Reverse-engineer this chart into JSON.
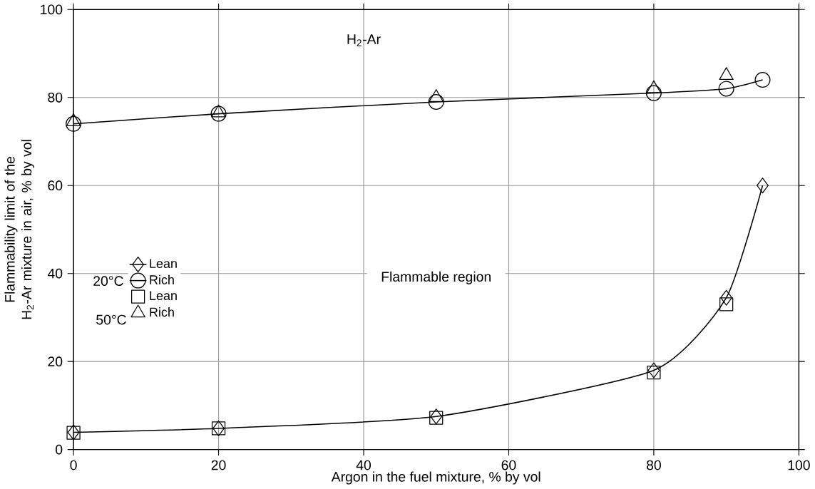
{
  "chart_data": {
    "type": "line",
    "xlabel": "Argon in the fuel mixture, % by vol",
    "ylabel": "Flammability limit of the H$_{2}$-Ar mixture in air, % by vol",
    "xlim": [
      0,
      100
    ],
    "ylim": [
      0,
      100
    ],
    "xticks": [
      0,
      20,
      40,
      60,
      80,
      100
    ],
    "yticks": [
      0,
      20,
      40,
      60,
      80,
      100
    ],
    "grid": true,
    "legend": "left",
    "annotations": [
      "H$_{2}$-Ar",
      "Flammable region",
      "20°C",
      "50°C"
    ],
    "series": [
      {
        "name": "Lean",
        "type": "line",
        "marker": "diamond",
        "color": "#000000",
        "x": [
          0,
          20,
          50,
          80,
          90,
          95
        ],
        "values": [
          3.9,
          4.8,
          7.5,
          18,
          34.5,
          60
        ]
      },
      {
        "name": "Rich",
        "type": "line",
        "marker": "circle",
        "color": "#000000",
        "x": [
          0,
          20,
          50,
          80,
          90,
          95
        ],
        "values": [
          74,
          76.3,
          79,
          81,
          82,
          84
        ]
      },
      {
        "name": "Lean",
        "type": "scatter",
        "marker": "square",
        "color": "#000000",
        "x": [
          0,
          20,
          50,
          80,
          90
        ],
        "values": [
          3.8,
          4.8,
          7.2,
          17.5,
          33
        ]
      },
      {
        "name": "Rich",
        "type": "scatter",
        "marker": "triangle",
        "color": "#000000",
        "x": [
          0,
          20,
          50,
          80,
          90
        ],
        "values": [
          74.5,
          76.5,
          80,
          82,
          85
        ]
      }
    ]
  }
}
